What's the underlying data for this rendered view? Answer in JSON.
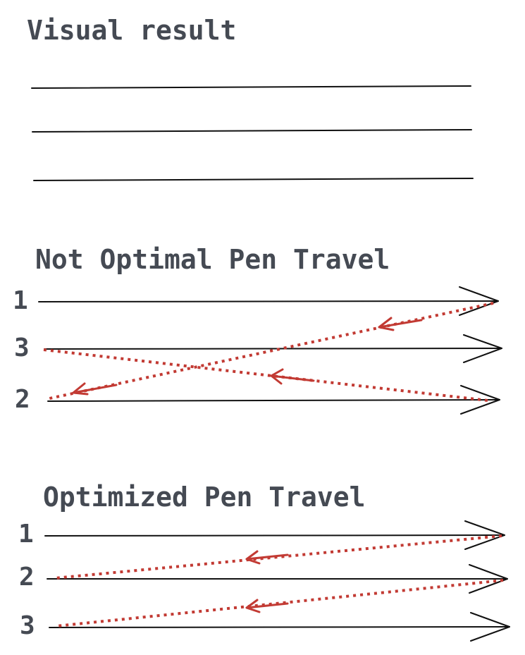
{
  "colors": {
    "text": "#454a53",
    "stroke": "#111111",
    "travel": "#c23a33"
  },
  "sections": {
    "visual_result": {
      "title": "Visual result"
    },
    "not_optimal": {
      "title": "Not Optimal Pen Travel",
      "row_labels": [
        "1",
        "3",
        "2"
      ]
    },
    "optimized": {
      "title": "Optimized Pen Travel",
      "row_labels": [
        "1",
        "2",
        "3"
      ]
    }
  }
}
